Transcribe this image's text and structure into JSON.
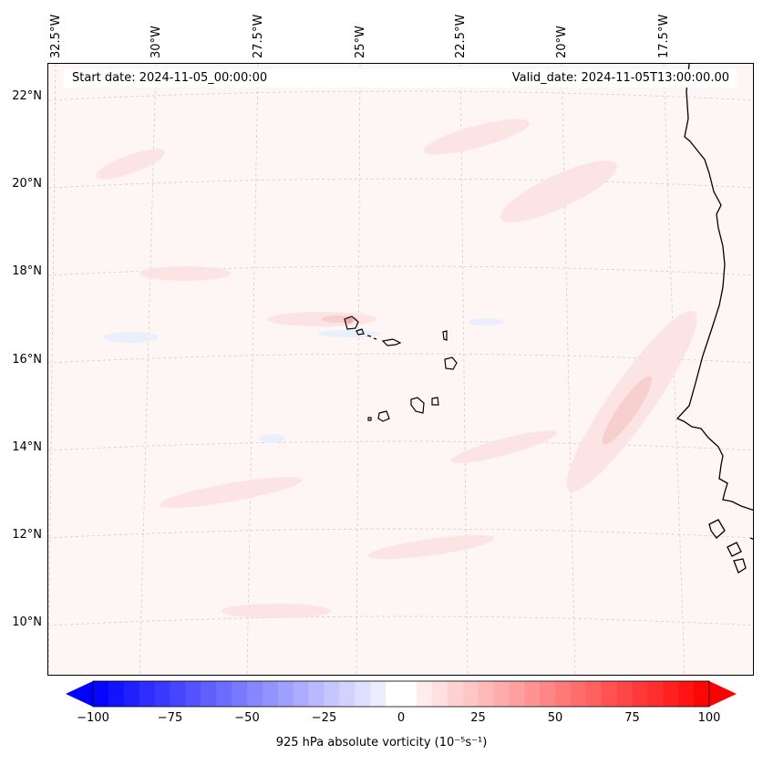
{
  "map": {
    "start_date": "Start date: 2024-11-05_00:00:00",
    "valid_date": "Valid_date: 2024-11-05T13:00:00.00",
    "lon_labels": [
      "32.5°W",
      "30°W",
      "27.5°W",
      "25°W",
      "22.5°W",
      "20°W",
      "17.5°W"
    ],
    "lat_labels": [
      "22°N",
      "20°N",
      "18°N",
      "16°N",
      "14°N",
      "12°N",
      "10°N"
    ],
    "field": "925 hPa absolute vorticity",
    "colors": {
      "negative_max": "#0000ff",
      "positive_max": "#ff0000",
      "neutral": "#ffffff",
      "background_field": "#fdf6f5",
      "coastline": "#000000"
    }
  },
  "colorbar": {
    "ticks": [
      "−100",
      "−75",
      "−50",
      "−25",
      "0",
      "25",
      "50",
      "75",
      "100"
    ],
    "min": -100,
    "max": 100,
    "levels": 40,
    "label": "925 hPa absolute vorticity (10⁻⁵s⁻¹)"
  }
}
